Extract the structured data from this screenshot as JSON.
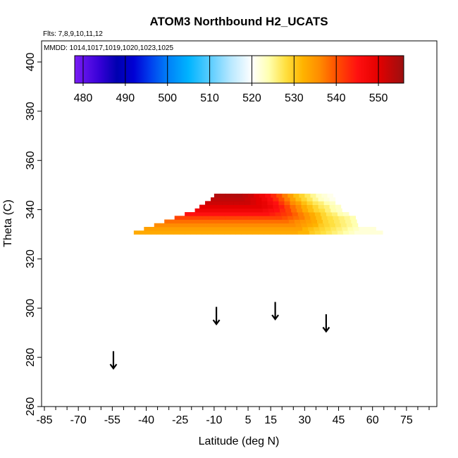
{
  "chart_data": {
    "type": "heatmap",
    "title": "ATOM3 Northbound H2_UCATS",
    "note_flights": "Flts: 7,8,9,10,11,12",
    "note_dates": "MMDD: 1014,1017,1019,1020,1023,1025",
    "xlabel": "Latitude (deg N)",
    "ylabel": "Theta (C)",
    "xlim": [
      -85,
      85
    ],
    "ylim": [
      260,
      405
    ],
    "x_tick_labels": [
      "-85",
      "-70",
      "-55",
      "-40",
      "-25",
      "-10",
      "5",
      "15",
      "30",
      "45",
      "60",
      "75"
    ],
    "x_tick_values": [
      -85,
      -70,
      -55,
      -40,
      -25,
      -10,
      5,
      15,
      30,
      45,
      60,
      75
    ],
    "x_minor_tick_values": [
      -80,
      -75,
      -65,
      -60,
      -50,
      -45,
      -35,
      -30,
      -20,
      -15,
      -5,
      0,
      10,
      20,
      25,
      35,
      40,
      50,
      55,
      65,
      70,
      80,
      85
    ],
    "y_ticks": [
      260,
      280,
      300,
      320,
      340,
      360,
      380,
      400
    ],
    "colorbar": {
      "min": 478,
      "max": 556,
      "tick_values": [
        480,
        490,
        500,
        510,
        520,
        530,
        540,
        550
      ],
      "tick_labels": [
        "480",
        "490",
        "500",
        "510",
        "520",
        "530",
        "540",
        "550"
      ],
      "colors": [
        {
          "value": 478,
          "color": "#7a1cf5"
        },
        {
          "value": 484,
          "color": "#3500d6"
        },
        {
          "value": 488,
          "color": "#0000b0"
        },
        {
          "value": 492,
          "color": "#0000d4"
        },
        {
          "value": 496,
          "color": "#0040ee"
        },
        {
          "value": 500,
          "color": "#007ff8"
        },
        {
          "value": 505,
          "color": "#00b4ff"
        },
        {
          "value": 510,
          "color": "#58ccff"
        },
        {
          "value": 515,
          "color": "#b8e8ff"
        },
        {
          "value": 520,
          "color": "#ffffff"
        },
        {
          "value": 524,
          "color": "#ffffb0"
        },
        {
          "value": 528,
          "color": "#ffe040"
        },
        {
          "value": 532,
          "color": "#ffb400"
        },
        {
          "value": 536,
          "color": "#ff8c00"
        },
        {
          "value": 540,
          "color": "#ff5000"
        },
        {
          "value": 545,
          "color": "#ff1010"
        },
        {
          "value": 550,
          "color": "#e40000"
        },
        {
          "value": 556,
          "color": "#9a1010"
        }
      ]
    },
    "cells": {
      "lat_step": 2.5,
      "theta_step": 1.5,
      "rows": [
        {
          "theta": 330,
          "lat_start": -45.5,
          "values": [
            533,
            533,
            533,
            533,
            533,
            533,
            533,
            533,
            533,
            533,
            533,
            533,
            533,
            533,
            533,
            533,
            533,
            533,
            533,
            533,
            533,
            533,
            533,
            533,
            533,
            533,
            533,
            533,
            533,
            532,
            532,
            530,
            529,
            528,
            527,
            526,
            525,
            524,
            523,
            522,
            522,
            522,
            522,
            522
          ]
        },
        {
          "theta": 331.5,
          "lat_start": -41,
          "values": [
            534,
            534,
            534,
            534,
            534,
            534,
            534,
            534,
            534,
            534,
            534,
            534,
            534,
            534,
            534,
            534,
            534,
            534,
            534,
            534,
            534,
            534,
            534,
            534,
            534,
            534,
            534,
            534,
            532,
            531,
            530,
            529,
            528,
            527,
            526,
            525,
            524,
            523,
            522,
            522,
            522
          ]
        },
        {
          "theta": 333,
          "lat_start": -36.5,
          "values": [
            536,
            536,
            536,
            536,
            536,
            536,
            536,
            536,
            536,
            536,
            536,
            536,
            536,
            536,
            536,
            536,
            536,
            536,
            536,
            536,
            536,
            536,
            536,
            536,
            536,
            535,
            534,
            533,
            532,
            530,
            529,
            528,
            527,
            526,
            525,
            524
          ]
        },
        {
          "theta": 334.5,
          "lat_start": -32,
          "values": [
            538,
            538,
            538,
            538,
            538,
            538,
            538,
            538,
            538,
            538,
            538,
            538,
            538,
            538,
            538,
            538,
            538,
            538,
            538,
            538,
            538,
            538,
            537,
            536,
            535,
            534,
            533,
            531,
            529,
            528,
            527,
            526,
            525,
            524
          ]
        },
        {
          "theta": 336,
          "lat_start": -27.5,
          "values": [
            541,
            541,
            541,
            541,
            541,
            541,
            541,
            541,
            541,
            541,
            541,
            541,
            541,
            541,
            541,
            541,
            541,
            541,
            541,
            540,
            539,
            538,
            537,
            535,
            533,
            531,
            529,
            528,
            527,
            526,
            525,
            524
          ]
        },
        {
          "theta": 337.5,
          "lat_start": -23,
          "values": [
            545,
            545,
            545,
            545,
            545,
            545,
            545,
            545,
            545,
            545,
            545,
            545,
            545,
            545,
            545,
            544,
            543,
            542,
            541,
            539,
            537,
            535,
            533,
            531,
            529,
            527,
            526,
            524,
            523
          ]
        },
        {
          "theta": 339,
          "lat_start": -18.5,
          "values": [
            548,
            548,
            548,
            548,
            548,
            548,
            548,
            548,
            548,
            548,
            548,
            548,
            547,
            546,
            545,
            543,
            541,
            538,
            536,
            533,
            531,
            529,
            528,
            526,
            524,
            523
          ]
        },
        {
          "theta": 340.5,
          "lat_start": -16.5,
          "values": [
            550,
            550,
            550,
            550,
            550,
            550,
            550,
            550,
            550,
            550,
            550,
            549,
            548,
            546,
            544,
            541,
            538,
            536,
            533,
            531,
            529,
            527,
            526,
            524,
            523
          ]
        },
        {
          "theta": 342,
          "lat_start": -14,
          "values": [
            552,
            552,
            552,
            552,
            552,
            552,
            552,
            552,
            551,
            550,
            549,
            547,
            545,
            542,
            539,
            536,
            534,
            531,
            529,
            527,
            526,
            524,
            523
          ]
        },
        {
          "theta": 343.5,
          "lat_start": -11.5,
          "values": [
            553,
            553,
            553,
            553,
            553,
            553,
            552,
            551,
            550,
            548,
            546,
            543,
            540,
            537,
            534,
            531,
            529,
            527,
            525,
            523,
            522,
            521
          ]
        },
        {
          "theta": 345,
          "lat_start": -10,
          "values": [
            554,
            554,
            554,
            554,
            554,
            553,
            552,
            550,
            548,
            546,
            543,
            540,
            537,
            534,
            531,
            529,
            527,
            525,
            523,
            522,
            521
          ]
        }
      ]
    },
    "arrows": [
      {
        "lat": -54.5,
        "theta_top": 282.5,
        "theta_tip": 275.5
      },
      {
        "lat": -9,
        "theta_top": 300.5,
        "theta_tip": 293.5
      },
      {
        "lat": 17,
        "theta_top": 302.5,
        "theta_tip": 295.5
      },
      {
        "lat": 39.5,
        "theta_top": 297.5,
        "theta_tip": 290.5
      }
    ]
  }
}
